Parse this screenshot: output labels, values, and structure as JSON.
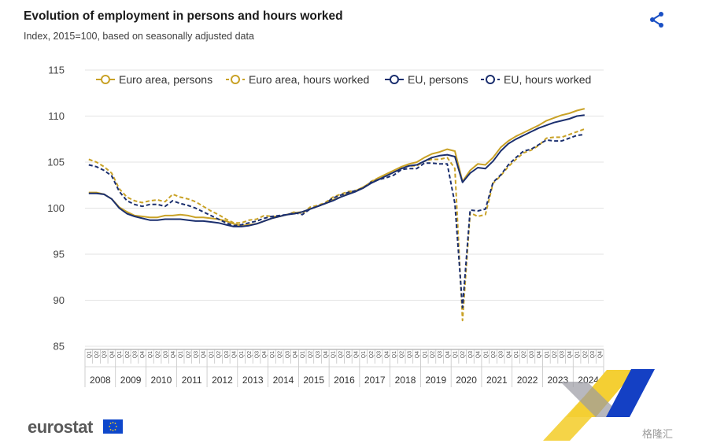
{
  "title": "Evolution of employment in persons and hours worked",
  "subtitle": "Index, 2015=100, based on seasonally adjusted data",
  "logo_text": "eurostat",
  "watermark_text": "格隆汇",
  "colors": {
    "gold": "#c9a227",
    "navy": "#1b2f6e",
    "grid": "#e3e3e3",
    "flag": "#0e47cb"
  },
  "icons": {
    "share": "share-icon",
    "flag": "eu-flag-icon"
  },
  "chart_data": {
    "type": "line",
    "ylim": [
      85,
      115
    ],
    "yticks": [
      85,
      90,
      95,
      100,
      105,
      110,
      115
    ],
    "years": [
      "2008",
      "2009",
      "2010",
      "2011",
      "2012",
      "2013",
      "2014",
      "2015",
      "2016",
      "2017",
      "2018",
      "2019",
      "2020",
      "2021",
      "2022",
      "2023",
      "2024"
    ],
    "quarter_labels": [
      "Q1",
      "Q2",
      "Q3",
      "Q4"
    ],
    "legend_position": "top",
    "grid": true,
    "series": [
      {
        "name": "Euro area, persons",
        "color": "#c9a227",
        "dashed": false,
        "values": [
          101.7,
          101.7,
          101.5,
          101.0,
          100.1,
          99.6,
          99.2,
          99.1,
          99.0,
          99.0,
          99.2,
          99.2,
          99.3,
          99.2,
          99.0,
          99.0,
          98.9,
          98.8,
          98.6,
          98.3,
          98.1,
          98.2,
          98.3,
          98.6,
          98.9,
          99.1,
          99.3,
          99.5,
          99.6,
          99.9,
          100.2,
          100.5,
          100.9,
          101.2,
          101.6,
          101.9,
          102.3,
          102.8,
          103.3,
          103.7,
          104.1,
          104.5,
          104.8,
          105.0,
          105.5,
          105.9,
          106.1,
          106.4,
          106.2,
          102.9,
          104.1,
          104.8,
          104.7,
          105.5,
          106.6,
          107.3,
          107.8,
          108.2,
          108.6,
          109.0,
          109.5,
          109.8,
          110.1,
          110.3,
          110.6,
          110.8
        ]
      },
      {
        "name": "Euro area, hours worked",
        "color": "#c9a227",
        "dashed": true,
        "values": [
          105.3,
          105.0,
          104.5,
          103.8,
          102.1,
          101.2,
          100.8,
          100.6,
          100.8,
          100.9,
          100.7,
          101.5,
          101.2,
          101.0,
          100.7,
          100.2,
          99.7,
          99.3,
          98.8,
          98.4,
          98.4,
          98.7,
          98.8,
          99.2,
          99.1,
          99.1,
          99.3,
          99.6,
          99.4,
          100.1,
          100.3,
          100.6,
          101.2,
          101.5,
          101.8,
          101.9,
          102.2,
          102.9,
          103.3,
          103.6,
          104.0,
          104.4,
          104.6,
          104.6,
          105.1,
          105.3,
          105.3,
          105.5,
          104.3,
          87.8,
          99.5,
          99.1,
          99.3,
          102.7,
          103.5,
          104.5,
          105.3,
          106.0,
          106.3,
          106.8,
          107.6,
          107.7,
          107.7,
          108.0,
          108.3,
          108.6
        ]
      },
      {
        "name": "EU, persons",
        "color": "#1b2f6e",
        "dashed": false,
        "values": [
          101.6,
          101.6,
          101.5,
          101.0,
          100.0,
          99.4,
          99.1,
          98.9,
          98.7,
          98.7,
          98.8,
          98.8,
          98.8,
          98.7,
          98.6,
          98.6,
          98.5,
          98.4,
          98.2,
          98.0,
          98.0,
          98.1,
          98.3,
          98.6,
          98.9,
          99.1,
          99.3,
          99.4,
          99.6,
          99.9,
          100.2,
          100.5,
          100.8,
          101.2,
          101.5,
          101.8,
          102.2,
          102.7,
          103.1,
          103.5,
          103.9,
          104.3,
          104.6,
          104.7,
          105.1,
          105.5,
          105.7,
          105.8,
          105.6,
          102.8,
          103.8,
          104.4,
          104.3,
          105.1,
          106.2,
          107.0,
          107.5,
          107.9,
          108.3,
          108.7,
          109.0,
          109.3,
          109.5,
          109.7,
          110.0,
          110.1
        ]
      },
      {
        "name": "EU, hours worked",
        "color": "#1b2f6e",
        "dashed": true,
        "values": [
          104.7,
          104.5,
          104.1,
          103.5,
          101.8,
          100.8,
          100.4,
          100.2,
          100.4,
          100.4,
          100.2,
          100.8,
          100.5,
          100.3,
          100.0,
          99.6,
          99.2,
          98.8,
          98.4,
          98.1,
          98.2,
          98.4,
          98.6,
          98.9,
          99.1,
          99.2,
          99.3,
          99.5,
          99.3,
          99.9,
          100.2,
          100.5,
          101.1,
          101.4,
          101.7,
          101.9,
          102.2,
          102.8,
          103.1,
          103.3,
          103.6,
          104.2,
          104.3,
          104.3,
          104.9,
          104.9,
          104.8,
          104.8,
          100.5,
          89.2,
          99.8,
          99.7,
          99.9,
          102.8,
          103.6,
          104.7,
          105.5,
          106.2,
          106.4,
          106.9,
          107.4,
          107.3,
          107.3,
          107.6,
          107.9,
          108.0
        ]
      }
    ]
  }
}
